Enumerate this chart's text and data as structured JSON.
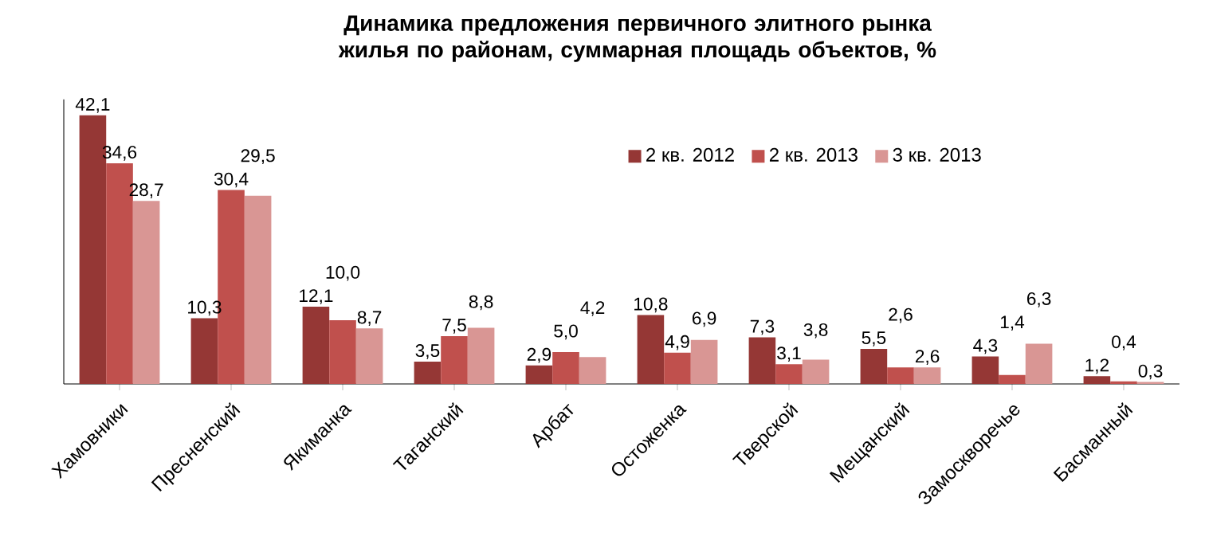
{
  "chart_data": {
    "type": "bar",
    "title": "Динамика предложения первичного элитного рынка жилья по районам, суммарная площадь объектов, %",
    "categories": [
      "Хамовники",
      "Пресненский",
      "Якиманка",
      "Таганский",
      "Арбат",
      "Остоженка",
      "Тверской",
      "Мещанский",
      "Замоскворечье",
      "Басманный"
    ],
    "series": [
      {
        "name": "2 кв. 2012",
        "color": "#953735",
        "values": [
          42.1,
          10.3,
          12.1,
          3.5,
          2.9,
          10.8,
          7.3,
          5.5,
          4.3,
          1.2
        ],
        "value_labels": [
          "42,1",
          "10,3",
          "12,1",
          "3,5",
          "2,9",
          "10,8",
          "7,3",
          "5,5",
          "4,3",
          "1,2"
        ]
      },
      {
        "name": "2 кв. 2013",
        "color": "#c0504d",
        "values": [
          34.6,
          30.4,
          10.0,
          7.5,
          5.0,
          4.9,
          3.1,
          2.6,
          1.4,
          0.4
        ],
        "value_labels": [
          "34,6",
          "30,4",
          "10,0",
          "7,5",
          "5,0",
          "4,9",
          "3,1",
          "2,6",
          "1,4",
          "0,4"
        ]
      },
      {
        "name": "3 кв. 2013",
        "color": "#d99694",
        "values": [
          28.7,
          29.5,
          8.7,
          8.8,
          4.2,
          6.9,
          3.8,
          2.6,
          6.3,
          0.3
        ],
        "value_labels": [
          "28,7",
          "29,5",
          "8,7",
          "8,8",
          "4,2",
          "6,9",
          "3,8",
          "2,6",
          "6,3",
          "0,3"
        ]
      }
    ],
    "legend": "top right"
  }
}
